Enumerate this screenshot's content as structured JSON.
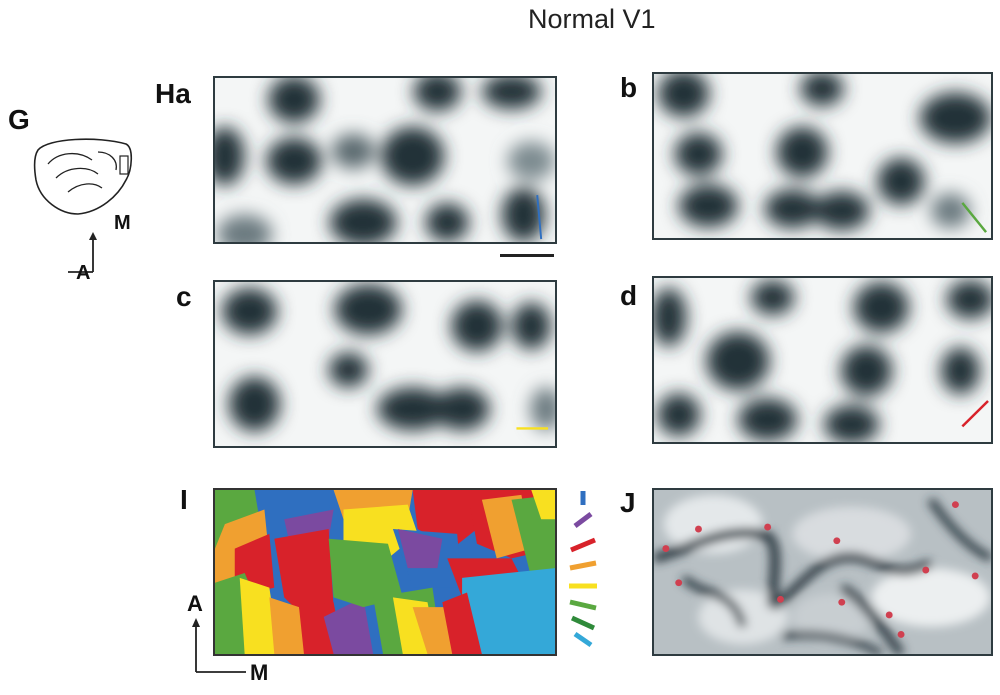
{
  "figure": {
    "title": "Normal V1",
    "panel_labels": {
      "G": "G",
      "Ha": "Ha",
      "b": "b",
      "c": "c",
      "d": "d",
      "I": "I",
      "J": "J"
    },
    "orientation_axes": {
      "G": {
        "vertical": "M",
        "horizontal": "A"
      },
      "I": {
        "vertical": "A",
        "horizontal": "M"
      }
    },
    "colors": {
      "dark_blob": "#223038",
      "panel_border": "#2e3b40",
      "orientation_blue": "#2f6fc0",
      "orientation_purple": "#7b4aa0",
      "orientation_red": "#d8222a",
      "orientation_orange": "#f0a030",
      "orientation_yellow": "#f8e020",
      "orientation_green": "#5aa840",
      "orientation_darkgreen": "#2f8a3a",
      "orientation_cyan": "#34a8d8",
      "pinwheel_marker": "#d04050"
    }
  }
}
